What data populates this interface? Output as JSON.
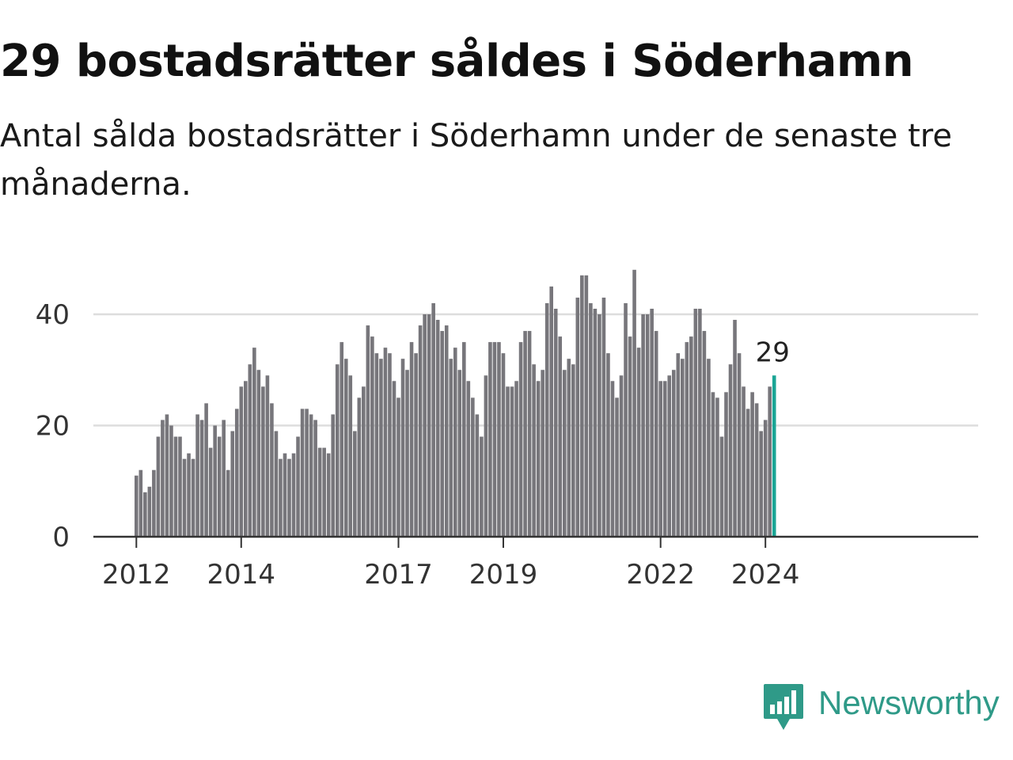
{
  "title": "29 bostadsrätter såldes i Söderhamn",
  "subtitle": "Antal sålda bostadsrätter i Söderhamn under de senaste tre månaderna.",
  "brand": {
    "name": "Newsworthy",
    "icon": "newsworthy-logo-icon",
    "color": "#2f9a88"
  },
  "colors": {
    "bar": "#77767b",
    "highlight": "#1aa595",
    "grid": "#dddddd",
    "axis": "#333333"
  },
  "chart_data": {
    "type": "bar",
    "title": "",
    "xlabel": "",
    "ylabel": "",
    "ylim": [
      0,
      50
    ],
    "yticks": [
      0,
      20,
      40
    ],
    "grid": true,
    "xtick_labels": [
      "2012",
      "2014",
      "2017",
      "2019",
      "2022",
      "2024"
    ],
    "start_month": "2012-01",
    "highlight_label": "29",
    "values": [
      11,
      12,
      8,
      9,
      12,
      18,
      21,
      22,
      20,
      18,
      18,
      14,
      15,
      14,
      22,
      21,
      24,
      16,
      20,
      18,
      21,
      12,
      19,
      23,
      27,
      28,
      31,
      34,
      30,
      27,
      29,
      24,
      19,
      14,
      15,
      14,
      15,
      18,
      23,
      23,
      22,
      21,
      16,
      16,
      15,
      22,
      31,
      35,
      32,
      29,
      19,
      25,
      27,
      38,
      36,
      33,
      32,
      34,
      33,
      28,
      25,
      32,
      30,
      35,
      33,
      38,
      40,
      40,
      42,
      39,
      37,
      38,
      32,
      34,
      30,
      35,
      28,
      25,
      22,
      18,
      29,
      35,
      35,
      35,
      33,
      27,
      27,
      28,
      35,
      37,
      37,
      31,
      28,
      30,
      42,
      45,
      41,
      36,
      30,
      32,
      31,
      43,
      47,
      47,
      42,
      41,
      40,
      43,
      33,
      28,
      25,
      29,
      42,
      36,
      48,
      34,
      40,
      40,
      41,
      37,
      28,
      28,
      29,
      30,
      33,
      32,
      35,
      36,
      41,
      41,
      37,
      32,
      26,
      25,
      18,
      26,
      31,
      39,
      33,
      27,
      23,
      26,
      24,
      19,
      21,
      27,
      29
    ]
  }
}
